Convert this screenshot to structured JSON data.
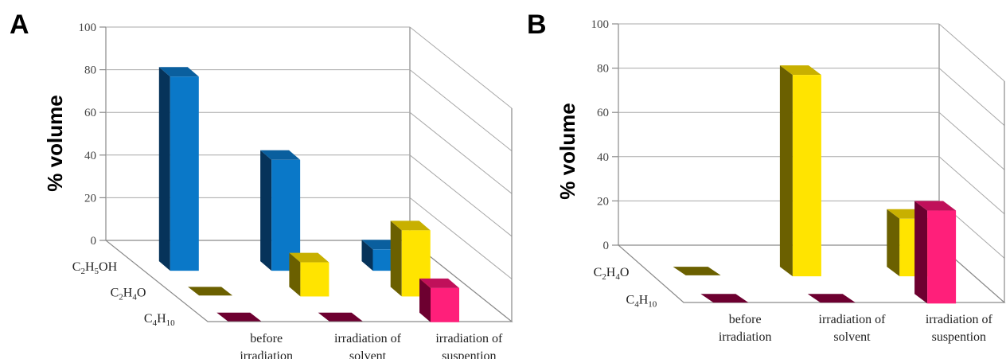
{
  "chart_data": [
    {
      "panel": "A",
      "type": "bar",
      "ylabel": "% volume",
      "ylim": [
        0,
        100
      ],
      "yticks": [
        0,
        20,
        40,
        60,
        80,
        100
      ],
      "categories": [
        {
          "lines": [
            "before",
            "irradiation"
          ]
        },
        {
          "lines": [
            "irradiation of",
            "solvent"
          ]
        },
        {
          "lines": [
            "irradiation of",
            "suspention"
          ]
        }
      ],
      "series": [
        {
          "label_main": "C",
          "label_parts": [
            {
              "t": "C"
            },
            {
              "t": "2",
              "sub": true
            },
            {
              "t": "H"
            },
            {
              "t": "5",
              "sub": true
            },
            {
              "t": "OH"
            }
          ],
          "values": [
            91,
            52,
            10
          ],
          "front": "#0a78c8",
          "side": "#06335a",
          "top": "#0a5f9e"
        },
        {
          "label_parts": [
            {
              "t": "C"
            },
            {
              "t": "2",
              "sub": true
            },
            {
              "t": "H"
            },
            {
              "t": "4",
              "sub": true
            },
            {
              "t": "O"
            }
          ],
          "values": [
            0,
            16,
            31
          ],
          "front": "#ffe400",
          "side": "#6b6000",
          "top": "#c8b000"
        },
        {
          "label_parts": [
            {
              "t": "C"
            },
            {
              "t": "4",
              "sub": true
            },
            {
              "t": "H"
            },
            {
              "t": "10",
              "sub": true
            }
          ],
          "values": [
            0,
            0,
            16
          ],
          "front": "#ff1f7a",
          "side": "#6d0030",
          "top": "#c0105a"
        }
      ]
    },
    {
      "panel": "B",
      "type": "bar",
      "ylabel": "% volume",
      "ylim": [
        0,
        100
      ],
      "yticks": [
        0,
        20,
        40,
        60,
        80,
        100
      ],
      "categories": [
        {
          "lines": [
            "before",
            "irradiation"
          ]
        },
        {
          "lines": [
            "irradiation of",
            "solvent"
          ]
        },
        {
          "lines": [
            "irradiation of",
            "suspention"
          ]
        }
      ],
      "series": [
        {
          "label_parts": [
            {
              "t": "C"
            },
            {
              "t": "2",
              "sub": true
            },
            {
              "t": "H"
            },
            {
              "t": "4",
              "sub": true
            },
            {
              "t": "O"
            }
          ],
          "values": [
            0,
            91,
            26
          ],
          "front": "#ffe400",
          "side": "#6b6000",
          "top": "#c8b000"
        },
        {
          "label_parts": [
            {
              "t": "C"
            },
            {
              "t": "4",
              "sub": true
            },
            {
              "t": "H"
            },
            {
              "t": "10",
              "sub": true
            }
          ],
          "values": [
            0,
            0,
            42
          ],
          "front": "#ff1f7a",
          "side": "#6d0030",
          "top": "#c0105a"
        }
      ]
    }
  ]
}
